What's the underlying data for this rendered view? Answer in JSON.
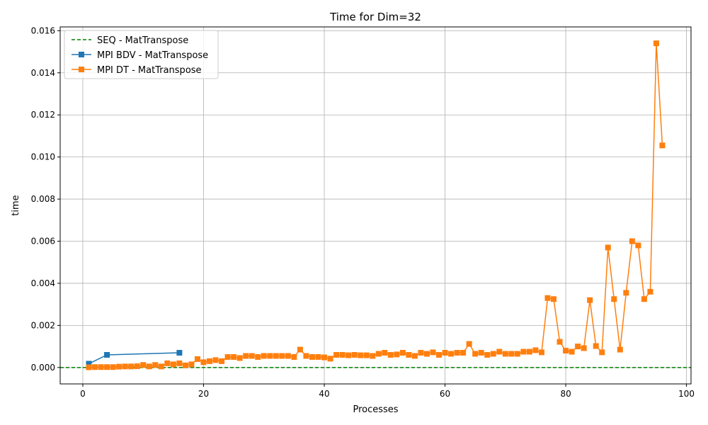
{
  "chart_data": {
    "type": "line",
    "title": "Time for Dim=32",
    "xlabel": "Processes",
    "ylabel": "time",
    "xlim": [
      -3.75,
      100.75
    ],
    "ylim": [
      -0.00078,
      0.01618
    ],
    "xticks": [
      0,
      20,
      40,
      60,
      80,
      100
    ],
    "yticks": [
      0.0,
      0.002,
      0.004,
      0.006,
      0.008,
      0.01,
      0.012,
      0.014,
      0.016
    ],
    "xtick_labels": [
      "0",
      "20",
      "40",
      "60",
      "80",
      "100"
    ],
    "ytick_labels": [
      "0.000",
      "0.002",
      "0.004",
      "0.006",
      "0.008",
      "0.010",
      "0.012",
      "0.014",
      "0.016"
    ],
    "grid": true,
    "legend_position": "top-left",
    "series": [
      {
        "name": "SEQ - MatTranspose",
        "style": "dashed-hline",
        "color": "#008000",
        "y": 0.0
      },
      {
        "name": "MPI BDV - MatTranspose",
        "style": "line-square",
        "color": "#1f77b4",
        "x": [
          1,
          4,
          16
        ],
        "y": [
          0.00018,
          0.0006,
          0.0007
        ]
      },
      {
        "name": "MPI DT - MatTranspose",
        "style": "line-square",
        "color": "#ff7f0e",
        "x": [
          1,
          2,
          3,
          4,
          5,
          6,
          7,
          8,
          9,
          10,
          11,
          12,
          13,
          14,
          15,
          16,
          17,
          18,
          19,
          20,
          21,
          22,
          23,
          24,
          25,
          26,
          27,
          28,
          29,
          30,
          31,
          32,
          33,
          34,
          35,
          36,
          37,
          38,
          39,
          40,
          41,
          42,
          43,
          44,
          45,
          46,
          47,
          48,
          49,
          50,
          51,
          52,
          53,
          54,
          55,
          56,
          57,
          58,
          59,
          60,
          61,
          62,
          63,
          64,
          65,
          66,
          67,
          68,
          69,
          70,
          71,
          72,
          73,
          74,
          75,
          76,
          77,
          78,
          79,
          80,
          81,
          82,
          83,
          84,
          85,
          86,
          87,
          88,
          89,
          90,
          91,
          92,
          93,
          94,
          95,
          96
        ],
        "y": [
          1e-05,
          2e-05,
          2e-05,
          2e-05,
          2e-05,
          4e-05,
          5e-05,
          5e-05,
          6e-05,
          0.00012,
          5e-05,
          0.00012,
          5e-05,
          0.0002,
          0.00015,
          0.0002,
          0.0001,
          0.00015,
          0.0004,
          0.00025,
          0.0003,
          0.00035,
          0.0003,
          0.0005,
          0.0005,
          0.00045,
          0.00055,
          0.00055,
          0.0005,
          0.00055,
          0.00055,
          0.00055,
          0.00055,
          0.00055,
          0.0005,
          0.00085,
          0.00055,
          0.0005,
          0.0005,
          0.00048,
          0.00042,
          0.0006,
          0.0006,
          0.00058,
          0.0006,
          0.00058,
          0.00058,
          0.00055,
          0.00065,
          0.0007,
          0.0006,
          0.00062,
          0.0007,
          0.0006,
          0.00055,
          0.0007,
          0.00065,
          0.00072,
          0.0006,
          0.0007,
          0.00065,
          0.0007,
          0.0007,
          0.00112,
          0.00065,
          0.0007,
          0.0006,
          0.00065,
          0.00075,
          0.00065,
          0.00065,
          0.00065,
          0.00075,
          0.00075,
          0.00082,
          0.00072,
          0.0033,
          0.00325,
          0.00122,
          0.0008,
          0.00075,
          0.001,
          0.00092,
          0.0032,
          0.00102,
          0.00072,
          0.0057,
          0.00325,
          0.00085,
          0.00355,
          0.006,
          0.0058,
          0.00325,
          0.0036,
          0.0154,
          0.01055
        ]
      }
    ]
  }
}
